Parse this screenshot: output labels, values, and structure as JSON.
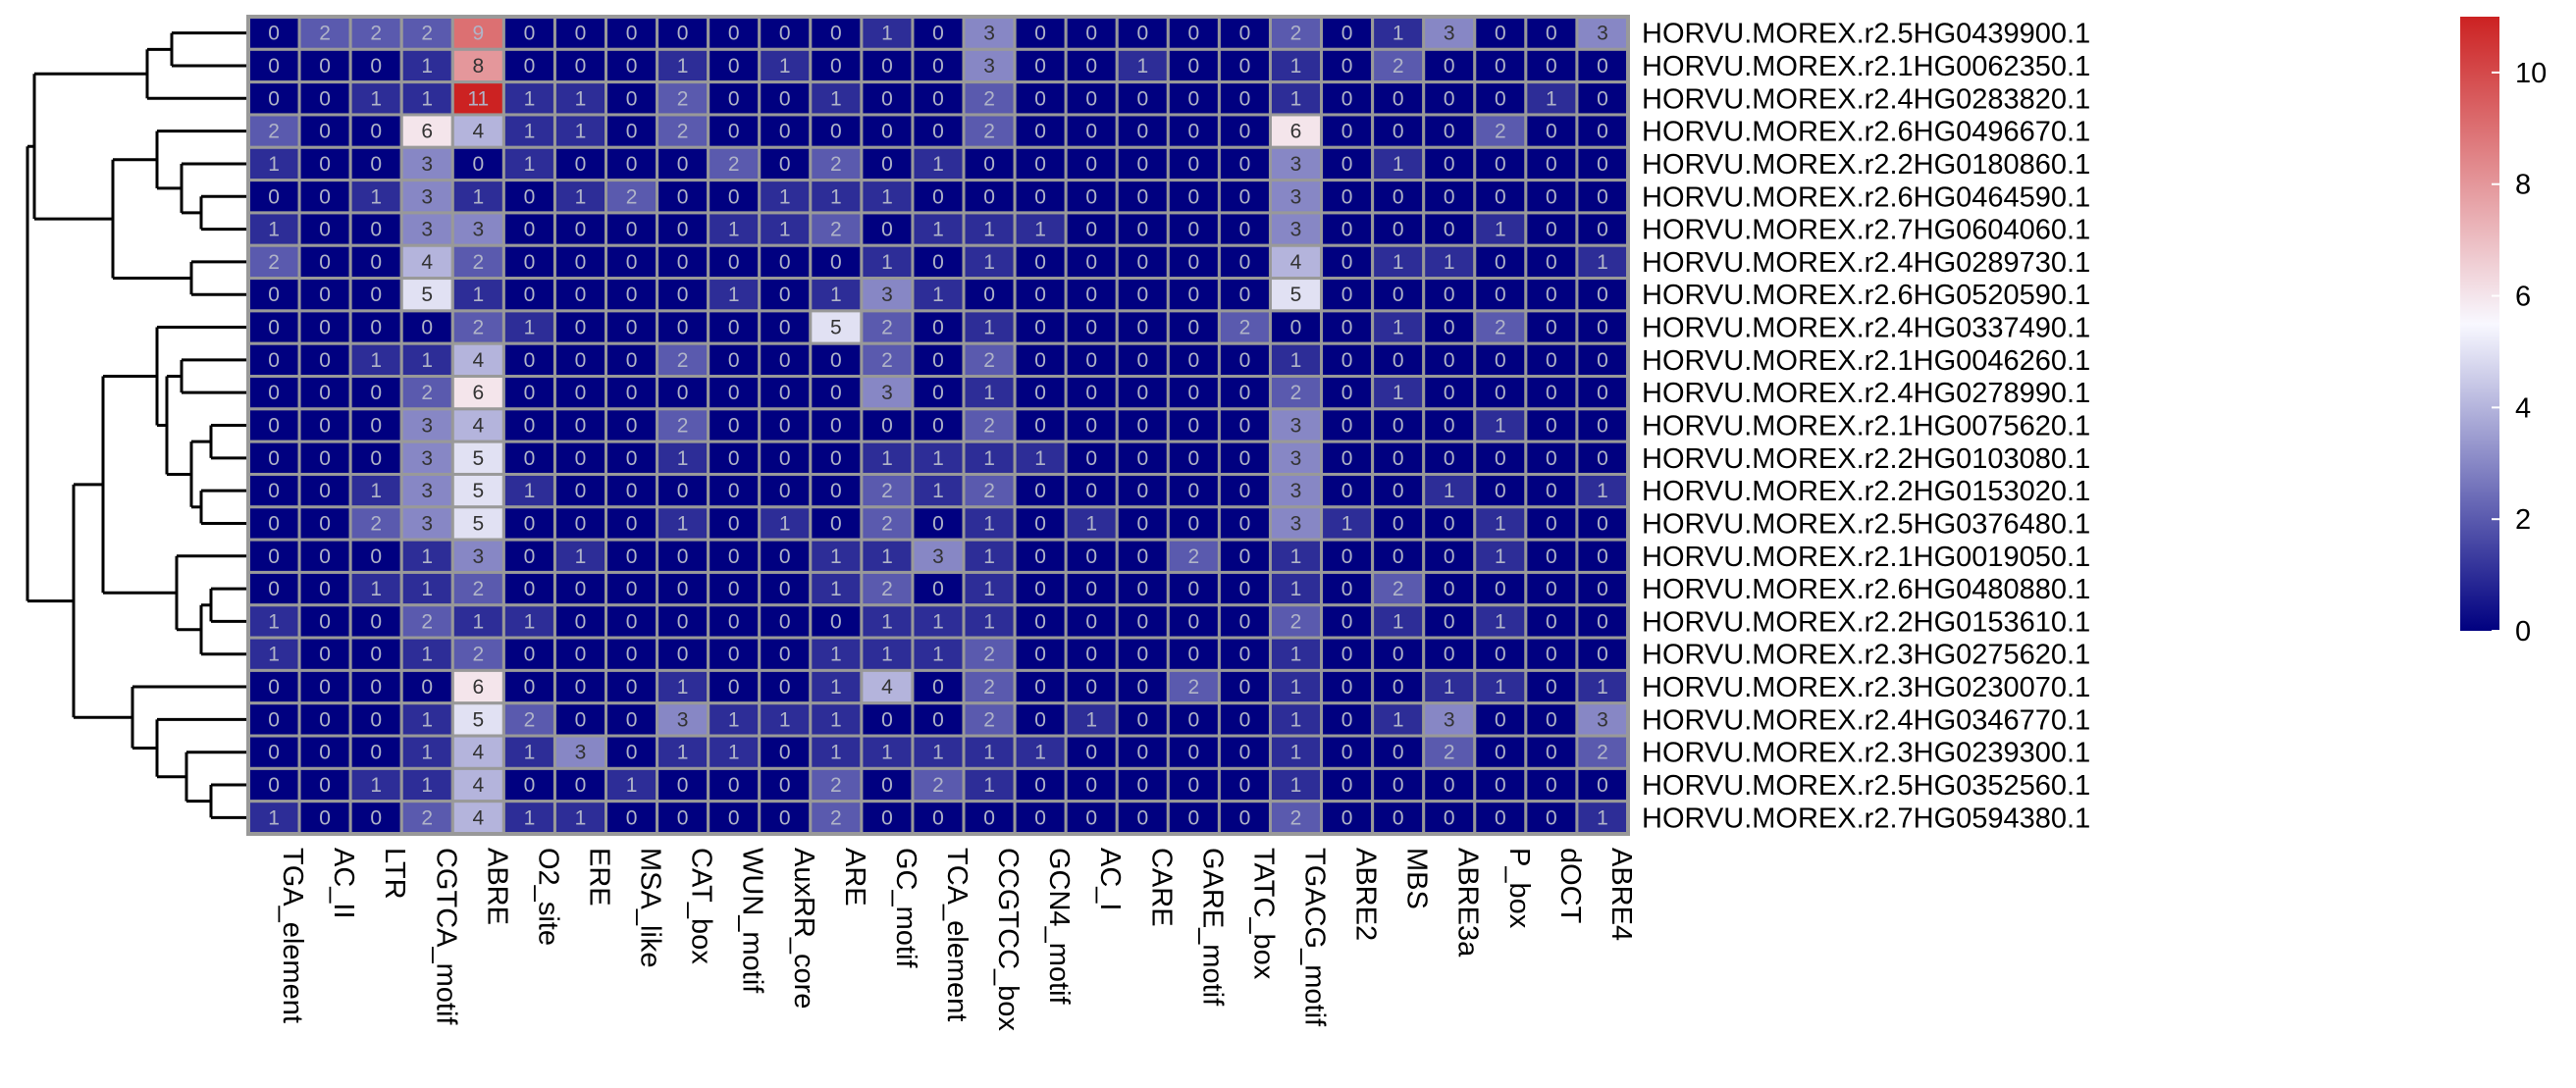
{
  "chart_data": {
    "type": "heatmap",
    "title": "",
    "xlabel": "",
    "ylabel": "",
    "columns": [
      "TGA_element",
      "AC_II",
      "LTR",
      "CGTCA_motif",
      "ABRE",
      "O2_site",
      "ERE",
      "MSA_like",
      "CAT_box",
      "WUN_motif",
      "AuxRR_core",
      "ARE",
      "GC_motif",
      "TCA_element",
      "CCGTCC_box",
      "GCN4_motif",
      "AC_I",
      "CARE",
      "GARE_motif",
      "TATC_box",
      "TGACG_motif",
      "ABRE2",
      "MBS",
      "ABRE3a",
      "P_box",
      "dOCT",
      "ABRE4"
    ],
    "rows": [
      "HORVU.MOREX.r2.5HG0439900.1",
      "HORVU.MOREX.r2.1HG0062350.1",
      "HORVU.MOREX.r2.4HG0283820.1",
      "HORVU.MOREX.r2.6HG0496670.1",
      "HORVU.MOREX.r2.2HG0180860.1",
      "HORVU.MOREX.r2.6HG0464590.1",
      "HORVU.MOREX.r2.7HG0604060.1",
      "HORVU.MOREX.r2.4HG0289730.1",
      "HORVU.MOREX.r2.6HG0520590.1",
      "HORVU.MOREX.r2.4HG0337490.1",
      "HORVU.MOREX.r2.1HG0046260.1",
      "HORVU.MOREX.r2.4HG0278990.1",
      "HORVU.MOREX.r2.1HG0075620.1",
      "HORVU.MOREX.r2.2HG0103080.1",
      "HORVU.MOREX.r2.2HG0153020.1",
      "HORVU.MOREX.r2.5HG0376480.1",
      "HORVU.MOREX.r2.1HG0019050.1",
      "HORVU.MOREX.r2.6HG0480880.1",
      "HORVU.MOREX.r2.2HG0153610.1",
      "HORVU.MOREX.r2.3HG0275620.1",
      "HORVU.MOREX.r2.3HG0230070.1",
      "HORVU.MOREX.r2.4HG0346770.1",
      "HORVU.MOREX.r2.3HG0239300.1",
      "HORVU.MOREX.r2.5HG0352560.1",
      "HORVU.MOREX.r2.7HG0594380.1"
    ],
    "values": [
      [
        0,
        2,
        2,
        2,
        9,
        0,
        0,
        0,
        0,
        0,
        0,
        0,
        1,
        0,
        3,
        0,
        0,
        0,
        0,
        0,
        2,
        0,
        1,
        3,
        0,
        0,
        3
      ],
      [
        0,
        0,
        0,
        1,
        8,
        0,
        0,
        0,
        1,
        0,
        1,
        0,
        0,
        0,
        3,
        0,
        0,
        1,
        0,
        0,
        1,
        0,
        2,
        0,
        0,
        0,
        0
      ],
      [
        0,
        0,
        1,
        1,
        11,
        1,
        1,
        0,
        2,
        0,
        0,
        1,
        0,
        0,
        2,
        0,
        0,
        0,
        0,
        0,
        1,
        0,
        0,
        0,
        0,
        1,
        0
      ],
      [
        2,
        0,
        0,
        6,
        4,
        1,
        1,
        0,
        2,
        0,
        0,
        0,
        0,
        0,
        2,
        0,
        0,
        0,
        0,
        0,
        6,
        0,
        0,
        0,
        2,
        0,
        0
      ],
      [
        1,
        0,
        0,
        3,
        0,
        1,
        0,
        0,
        0,
        2,
        0,
        2,
        0,
        1,
        0,
        0,
        0,
        0,
        0,
        0,
        3,
        0,
        1,
        0,
        0,
        0,
        0
      ],
      [
        0,
        0,
        1,
        3,
        1,
        0,
        1,
        2,
        0,
        0,
        1,
        1,
        1,
        0,
        0,
        0,
        0,
        0,
        0,
        0,
        3,
        0,
        0,
        0,
        0,
        0,
        0
      ],
      [
        1,
        0,
        0,
        3,
        3,
        0,
        0,
        0,
        0,
        1,
        1,
        2,
        0,
        1,
        1,
        1,
        0,
        0,
        0,
        0,
        3,
        0,
        0,
        0,
        1,
        0,
        0
      ],
      [
        2,
        0,
        0,
        4,
        2,
        0,
        0,
        0,
        0,
        0,
        0,
        0,
        1,
        0,
        1,
        0,
        0,
        0,
        0,
        0,
        4,
        0,
        1,
        1,
        0,
        0,
        1
      ],
      [
        0,
        0,
        0,
        5,
        1,
        0,
        0,
        0,
        0,
        1,
        0,
        1,
        3,
        1,
        0,
        0,
        0,
        0,
        0,
        0,
        5,
        0,
        0,
        0,
        0,
        0,
        0
      ],
      [
        0,
        0,
        0,
        0,
        2,
        1,
        0,
        0,
        0,
        0,
        0,
        5,
        2,
        0,
        1,
        0,
        0,
        0,
        0,
        2,
        0,
        0,
        1,
        0,
        2,
        0,
        0
      ],
      [
        0,
        0,
        1,
        1,
        4,
        0,
        0,
        0,
        2,
        0,
        0,
        0,
        2,
        0,
        2,
        0,
        0,
        0,
        0,
        0,
        1,
        0,
        0,
        0,
        0,
        0,
        0
      ],
      [
        0,
        0,
        0,
        2,
        6,
        0,
        0,
        0,
        0,
        0,
        0,
        0,
        3,
        0,
        1,
        0,
        0,
        0,
        0,
        0,
        2,
        0,
        1,
        0,
        0,
        0,
        0
      ],
      [
        0,
        0,
        0,
        3,
        4,
        0,
        0,
        0,
        2,
        0,
        0,
        0,
        0,
        0,
        2,
        0,
        0,
        0,
        0,
        0,
        3,
        0,
        0,
        0,
        1,
        0,
        0
      ],
      [
        0,
        0,
        0,
        3,
        5,
        0,
        0,
        0,
        1,
        0,
        0,
        0,
        1,
        1,
        1,
        1,
        0,
        0,
        0,
        0,
        3,
        0,
        0,
        0,
        0,
        0,
        0
      ],
      [
        0,
        0,
        1,
        3,
        5,
        1,
        0,
        0,
        0,
        0,
        0,
        0,
        2,
        1,
        2,
        0,
        0,
        0,
        0,
        0,
        3,
        0,
        0,
        1,
        0,
        0,
        1
      ],
      [
        0,
        0,
        2,
        3,
        5,
        0,
        0,
        0,
        1,
        0,
        1,
        0,
        2,
        0,
        1,
        0,
        1,
        0,
        0,
        0,
        3,
        1,
        0,
        0,
        1,
        0,
        0
      ],
      [
        0,
        0,
        0,
        1,
        3,
        0,
        1,
        0,
        0,
        0,
        0,
        1,
        1,
        3,
        1,
        0,
        0,
        0,
        2,
        0,
        1,
        0,
        0,
        0,
        1,
        0,
        0
      ],
      [
        0,
        0,
        1,
        1,
        2,
        0,
        0,
        0,
        0,
        0,
        0,
        1,
        2,
        0,
        1,
        0,
        0,
        0,
        0,
        0,
        1,
        0,
        2,
        0,
        0,
        0,
        0
      ],
      [
        1,
        0,
        0,
        2,
        1,
        1,
        0,
        0,
        0,
        0,
        0,
        0,
        1,
        1,
        1,
        0,
        0,
        0,
        0,
        0,
        2,
        0,
        1,
        0,
        1,
        0,
        0
      ],
      [
        1,
        0,
        0,
        1,
        2,
        0,
        0,
        0,
        0,
        0,
        0,
        1,
        1,
        1,
        2,
        0,
        0,
        0,
        0,
        0,
        1,
        0,
        0,
        0,
        0,
        0,
        0
      ],
      [
        0,
        0,
        0,
        0,
        6,
        0,
        0,
        0,
        1,
        0,
        0,
        1,
        4,
        0,
        2,
        0,
        0,
        0,
        2,
        0,
        1,
        0,
        0,
        1,
        1,
        0,
        1
      ],
      [
        0,
        0,
        0,
        1,
        5,
        2,
        0,
        0,
        3,
        1,
        1,
        1,
        0,
        0,
        2,
        0,
        1,
        0,
        0,
        0,
        1,
        0,
        1,
        3,
        0,
        0,
        3
      ],
      [
        0,
        0,
        0,
        1,
        4,
        1,
        3,
        0,
        1,
        1,
        0,
        1,
        1,
        1,
        1,
        1,
        0,
        0,
        0,
        0,
        1,
        0,
        0,
        2,
        0,
        0,
        2
      ],
      [
        0,
        0,
        1,
        1,
        4,
        0,
        0,
        1,
        0,
        0,
        0,
        2,
        0,
        2,
        1,
        0,
        0,
        0,
        0,
        0,
        1,
        0,
        0,
        0,
        0,
        0,
        0
      ],
      [
        1,
        0,
        0,
        2,
        4,
        1,
        1,
        0,
        0,
        0,
        0,
        2,
        0,
        0,
        0,
        0,
        0,
        0,
        0,
        0,
        2,
        0,
        0,
        0,
        0,
        0,
        1
      ]
    ],
    "color_scale": {
      "min": 0,
      "mid": 5.5,
      "max": 11,
      "low_color": "#000080",
      "mid_color": "#f8f8ff",
      "high_color": "#cc2222",
      "ticks": [
        0,
        2,
        4,
        6,
        8,
        10
      ]
    },
    "grid_color": "#999999",
    "dendrogram": {
      "position": "left",
      "groups": [
        [
          0,
          1,
          2
        ],
        [
          3,
          4,
          5,
          6,
          7,
          8
        ],
        [
          9,
          10,
          11,
          12,
          13,
          14,
          15
        ],
        [
          16,
          17,
          18,
          19
        ],
        [
          20,
          21,
          22,
          23,
          24
        ]
      ]
    },
    "legend": "right"
  }
}
